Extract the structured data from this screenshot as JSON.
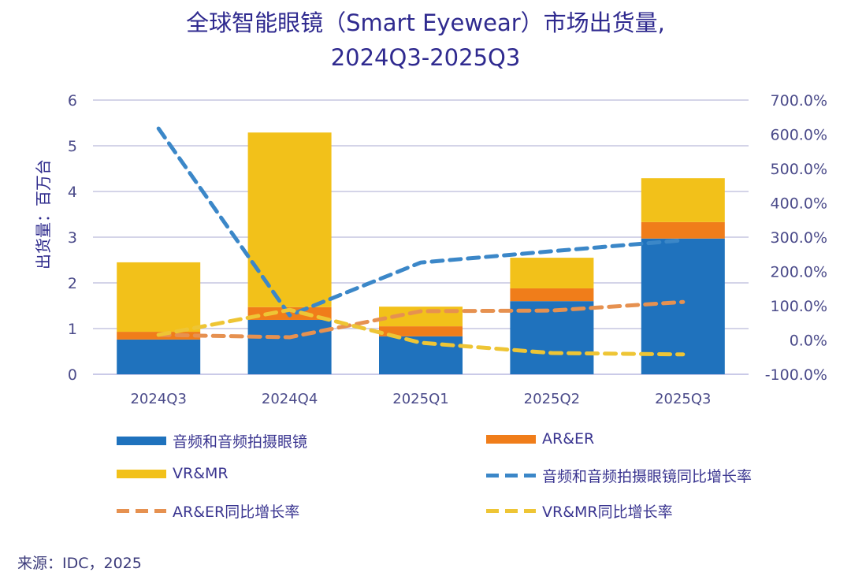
{
  "chart_data": {
    "type": "bar",
    "subtype": "stacked-bar-with-lines",
    "title": "全球智能眼镜（Smart Eyewear）市场出货量,",
    "subtitle": "2024Q3-2025Q3",
    "ylabel": "出货量：百万台",
    "ylabel_right": "",
    "xlabel": "",
    "categories": [
      "2024Q3",
      "2024Q4",
      "2025Q1",
      "2025Q2",
      "2025Q3"
    ],
    "ylim": [
      0,
      6
    ],
    "y_ticks": [
      "0",
      "1",
      "2",
      "3",
      "4",
      "5",
      "6"
    ],
    "y_tick_values": [
      0,
      1,
      2,
      3,
      4,
      5,
      6
    ],
    "ylim_right": [
      -100,
      700
    ],
    "y_right_ticks": [
      "-100.0%",
      "0.0%",
      "100.0%",
      "200.0%",
      "300.0%",
      "400.0%",
      "500.0%",
      "600.0%",
      "700.0%"
    ],
    "y_right_tick_values": [
      -100,
      0,
      100,
      200,
      300,
      400,
      500,
      600,
      700
    ],
    "grid": true,
    "legend_position": "bottom",
    "series": [
      {
        "name": "音频和音频拍摄眼镜",
        "kind": "bar",
        "axis": "left",
        "color": "#1f72bd",
        "values": [
          0.76,
          1.19,
          0.83,
          1.6,
          2.97
        ]
      },
      {
        "name": "AR&ER",
        "kind": "bar",
        "axis": "left",
        "color": "#f07d1a",
        "values": [
          0.17,
          0.28,
          0.22,
          0.28,
          0.36
        ]
      },
      {
        "name": "VR&MR",
        "kind": "bar",
        "axis": "left",
        "color": "#f2c11a",
        "values": [
          1.52,
          3.82,
          0.43,
          0.67,
          0.96
        ]
      },
      {
        "name": "音频和音频拍摄眼镜同比增长率",
        "kind": "line-dashed",
        "axis": "right",
        "unit": "%",
        "color": "#3b87c8",
        "values": [
          617,
          72,
          226,
          259,
          291
        ]
      },
      {
        "name": "AR&ER同比增长率",
        "kind": "line-dashed",
        "axis": "right",
        "unit": "%",
        "color": "#e69150",
        "values": [
          15,
          8,
          84,
          86,
          111
        ]
      },
      {
        "name": "VR&MR同比增长率",
        "kind": "line-dashed",
        "axis": "right",
        "unit": "%",
        "color": "#eec535",
        "values": [
          15,
          88,
          -8,
          -38,
          -42
        ]
      }
    ]
  },
  "legend": [
    {
      "label": "音频和音频拍摄眼镜",
      "style": "bar",
      "color": "#1f72bd"
    },
    {
      "label": "AR&ER",
      "style": "bar",
      "color": "#f07d1a"
    },
    {
      "label": "VR&MR",
      "style": "bar",
      "color": "#f2c11a"
    },
    {
      "label": "音频和音频拍摄眼镜同比增长率",
      "style": "dash",
      "color": "#3b87c8"
    },
    {
      "label": "AR&ER同比增长率",
      "style": "dash",
      "color": "#e69150"
    },
    {
      "label": "VR&MR同比增长率",
      "style": "dash",
      "color": "#eec535"
    }
  ],
  "source": "来源：IDC，2025"
}
